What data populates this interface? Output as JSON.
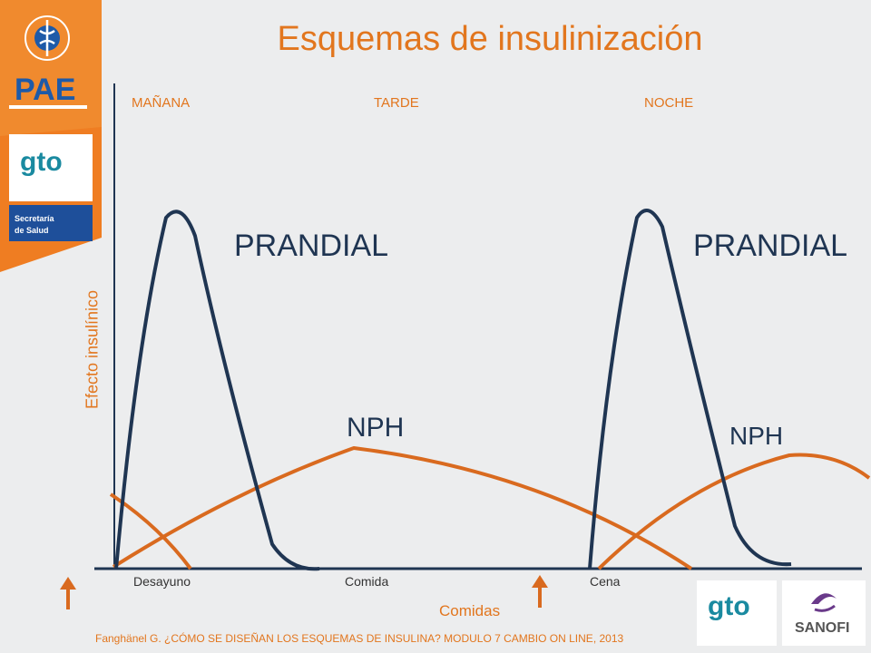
{
  "slide": {
    "title": "Esquemas de insulinización",
    "periods": [
      "MAÑANA",
      "TARDE",
      "NOCHE"
    ],
    "meals": [
      "Desayuno",
      "Comida",
      "Cena"
    ],
    "y_axis_label": "Efecto insulínico",
    "x_axis_label": "Comidas",
    "curve_labels": {
      "prandial_1": "PRANDIAL",
      "prandial_2": "PRANDIAL",
      "nph_1": "NPH",
      "nph_2": "NPH"
    },
    "citation": "Fanghänel G. ¿CÓMO SE DISEÑAN LOS ESQUEMAS DE INSULINA? MODULO 7 CAMBIO ON LINE, 2013",
    "logos": {
      "pae": "PAE",
      "gto": "gto",
      "secretaria": "Secretaría de Salud",
      "gto_bottom": "gto",
      "sanofi": "SANOFI"
    },
    "colors": {
      "accent": "#e2761e",
      "prandial_curve": "#1f3552",
      "nph_curve": "#d96a1f",
      "sidebar": "#ef7d22"
    }
  }
}
